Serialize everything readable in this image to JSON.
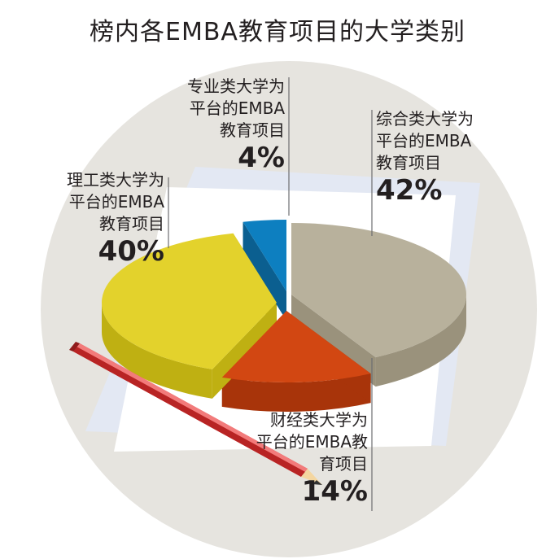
{
  "title": "榜内各EMBA教育项目的大学类别",
  "chart_data": {
    "type": "pie",
    "title": "榜内各EMBA教育项目的大学类别",
    "slices": [
      {
        "key": "comprehensive",
        "label_lines": [
          "综合类大学为",
          "平台的EMBA",
          "教育项目"
        ],
        "pct_text": "42%",
        "value": 42,
        "color": "#b8b19c",
        "side": "#9a927c"
      },
      {
        "key": "finance",
        "label_lines": [
          "财经类大学为",
          "平台的EMBA教",
          "育项目"
        ],
        "pct_text": "14%",
        "value": 14,
        "color": "#d24712",
        "side": "#a8340a"
      },
      {
        "key": "science",
        "label_lines": [
          "理工类大学为",
          "平台的EMBA",
          "教育项目"
        ],
        "pct_text": "40%",
        "value": 40,
        "color": "#e3d22c",
        "side": "#bfb012"
      },
      {
        "key": "specialized",
        "label_lines": [
          "专业类大学为",
          "平台的EMBA",
          "教育项目"
        ],
        "pct_text": "4%",
        "value": 4,
        "color": "#0d7fc0",
        "side": "#0b5f90"
      }
    ]
  }
}
